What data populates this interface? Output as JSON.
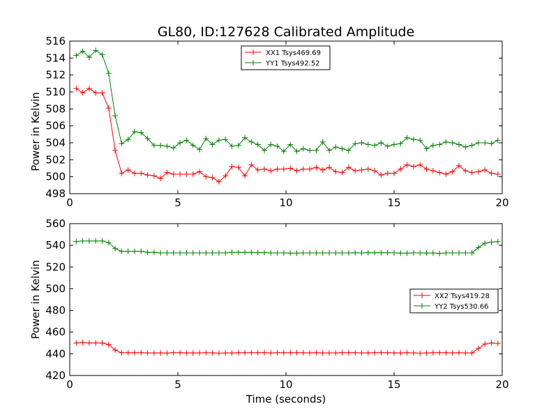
{
  "chart_data": [
    {
      "type": "line",
      "title": "GL80, ID:127628 Calibrated Amplitude",
      "xlabel": "",
      "ylabel": "Power in Kelvin",
      "xlim": [
        0,
        20
      ],
      "ylim": [
        498,
        516
      ],
      "xticks": [
        0,
        5,
        10,
        15,
        20
      ],
      "yticks": [
        498,
        500,
        502,
        504,
        506,
        508,
        510,
        512,
        514,
        516
      ],
      "grid": false,
      "legend_position": "top-center",
      "x": [
        0.3,
        0.6,
        0.9,
        1.2,
        1.5,
        1.8,
        2.1,
        2.4,
        2.7,
        3.0,
        3.3,
        3.6,
        3.9,
        4.2,
        4.5,
        4.8,
        5.1,
        5.4,
        5.7,
        6.0,
        6.3,
        6.6,
        6.9,
        7.2,
        7.5,
        7.8,
        8.1,
        8.4,
        8.7,
        9.0,
        9.3,
        9.6,
        9.9,
        10.2,
        10.5,
        10.8,
        11.1,
        11.4,
        11.7,
        12.0,
        12.3,
        12.6,
        12.9,
        13.2,
        13.5,
        13.8,
        14.1,
        14.4,
        14.7,
        15.0,
        15.3,
        15.6,
        15.9,
        16.2,
        16.5,
        16.8,
        17.1,
        17.4,
        17.7,
        18.0,
        18.3,
        18.6,
        18.9,
        19.2,
        19.5,
        19.8
      ],
      "series": [
        {
          "name": "XX1 Tsys469.69",
          "color": "#ff0000",
          "values": [
            510.4,
            509.9,
            510.4,
            509.9,
            509.9,
            508.1,
            503.1,
            500.4,
            500.8,
            500.4,
            500.4,
            500.2,
            500.1,
            499.8,
            500.5,
            500.3,
            500.3,
            500.3,
            500.3,
            500.6,
            500.0,
            499.9,
            499.4,
            500.1,
            501.2,
            501.1,
            500.1,
            501.4,
            500.8,
            500.9,
            500.7,
            500.9,
            500.9,
            501.0,
            500.7,
            500.9,
            500.9,
            501.1,
            500.8,
            501.1,
            500.6,
            500.5,
            501.1,
            500.7,
            500.8,
            500.9,
            500.7,
            500.2,
            500.4,
            500.4,
            500.9,
            501.4,
            501.2,
            501.4,
            500.9,
            500.7,
            500.5,
            500.3,
            500.6,
            501.3,
            500.7,
            500.5,
            500.6,
            500.8,
            500.4,
            500.3
          ]
        },
        {
          "name": "YY1 Tsys492.52",
          "color": "#008000",
          "values": [
            514.3,
            514.8,
            514.1,
            514.9,
            514.4,
            512.2,
            507.2,
            503.9,
            504.4,
            505.3,
            505.2,
            504.5,
            503.7,
            503.7,
            503.6,
            503.4,
            504.0,
            504.3,
            503.7,
            503.2,
            504.5,
            503.8,
            504.3,
            504.4,
            503.6,
            503.7,
            504.6,
            504.1,
            503.8,
            503.1,
            503.8,
            503.6,
            503.0,
            503.8,
            503.0,
            503.3,
            503.1,
            503.1,
            504.1,
            503.1,
            503.5,
            503.3,
            503.1,
            503.9,
            504.0,
            503.8,
            503.7,
            504.0,
            503.6,
            503.8,
            503.9,
            504.6,
            504.4,
            504.3,
            503.3,
            503.7,
            503.8,
            504.1,
            504.0,
            503.8,
            503.5,
            503.7,
            504.0,
            504.0,
            503.9,
            504.3
          ]
        }
      ]
    },
    {
      "type": "line",
      "title": "",
      "xlabel": "Time (seconds)",
      "ylabel": "Power in Kelvin",
      "xlim": [
        0,
        20
      ],
      "ylim": [
        420,
        560
      ],
      "xticks": [
        0,
        5,
        10,
        15,
        20
      ],
      "yticks": [
        420,
        440,
        460,
        480,
        500,
        520,
        540,
        560
      ],
      "grid": false,
      "legend_position": "center-right",
      "x": [
        0.3,
        0.6,
        0.9,
        1.2,
        1.5,
        1.8,
        2.1,
        2.4,
        2.7,
        3.0,
        3.3,
        3.6,
        3.9,
        4.2,
        4.5,
        4.8,
        5.1,
        5.4,
        5.7,
        6.0,
        6.3,
        6.6,
        6.9,
        7.2,
        7.5,
        7.8,
        8.1,
        8.4,
        8.7,
        9.0,
        9.3,
        9.6,
        9.9,
        10.2,
        10.5,
        10.8,
        11.1,
        11.4,
        11.7,
        12.0,
        12.3,
        12.6,
        12.9,
        13.2,
        13.5,
        13.8,
        14.1,
        14.4,
        14.7,
        15.0,
        15.3,
        15.6,
        15.9,
        16.2,
        16.5,
        16.8,
        17.1,
        17.4,
        17.7,
        18.0,
        18.3,
        18.6,
        18.9,
        19.2,
        19.5,
        19.8
      ],
      "series": [
        {
          "name": "XX2 Tsys419.28",
          "color": "#ff0000",
          "values": [
            450,
            450.5,
            450,
            450,
            450,
            448.5,
            443.5,
            441,
            441,
            441,
            441,
            440.8,
            440.8,
            440.8,
            440.6,
            441,
            441,
            440.8,
            440.8,
            440.8,
            441,
            440.8,
            440.5,
            440.8,
            440.8,
            441,
            441,
            441,
            441,
            441,
            440.8,
            441,
            441,
            441,
            441,
            441,
            440.8,
            441,
            440.8,
            440.8,
            440.8,
            441,
            441,
            441,
            440.8,
            440.8,
            441,
            441,
            441,
            440.8,
            440.8,
            441,
            440.8,
            440.5,
            440.8,
            441,
            441,
            441,
            440.8,
            441,
            440.8,
            440.8,
            445,
            449,
            450,
            449.5
          ]
        },
        {
          "name": "YY2 Tsys530.66",
          "color": "#008000",
          "values": [
            543.5,
            544,
            544,
            544,
            544,
            542.5,
            537,
            534.5,
            534.5,
            534.5,
            534.5,
            533.5,
            533.5,
            533,
            533,
            533,
            533,
            533,
            533,
            533,
            533,
            533,
            533,
            533,
            533.5,
            533.5,
            533.5,
            533.5,
            533.3,
            533.3,
            533,
            533,
            533,
            532.8,
            532.8,
            533,
            533,
            533,
            533,
            533,
            533,
            533,
            533,
            533.2,
            533,
            533.2,
            533.2,
            533.2,
            533.2,
            533,
            532.8,
            532.8,
            533,
            533,
            532.8,
            533,
            532.5,
            533,
            533,
            533,
            533,
            533,
            538,
            542,
            543,
            543.5
          ]
        }
      ]
    }
  ]
}
